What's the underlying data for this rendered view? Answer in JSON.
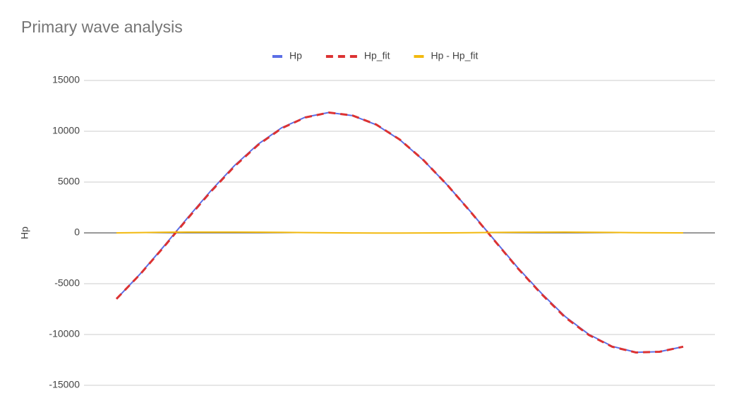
{
  "chart_data": {
    "type": "line",
    "title": "Primary wave analysis",
    "y_label": "Hp",
    "categories": [
      null,
      null,
      null,
      null,
      null,
      null,
      null,
      null,
      null,
      null,
      null,
      null,
      null,
      null,
      null,
      null,
      null,
      null,
      null,
      null,
      null,
      null,
      null,
      null,
      null
    ],
    "series": [
      {
        "name": "Hp",
        "color": "#5b6ee6",
        "dash": false,
        "values": [
          -6500,
          -4050,
          -1340,
          1450,
          4150,
          6630,
          8730,
          10350,
          11390,
          11850,
          11540,
          10640,
          9160,
          7150,
          4740,
          2080,
          -690,
          -3440,
          -5950,
          -8230,
          -9980,
          -11170,
          -11750,
          -11690,
          -11200
        ]
      },
      {
        "name": "Hp_fit",
        "color": "#dc3232",
        "dash": true,
        "values": [
          -6500,
          -4080,
          -1400,
          1370,
          4070,
          6550,
          8660,
          10300,
          11360,
          11840,
          11550,
          10660,
          9180,
          7160,
          4740,
          2060,
          -730,
          -3500,
          -6020,
          -8310,
          -10040,
          -11210,
          -11770,
          -11700,
          -11200
        ]
      },
      {
        "name": "Hp - Hp_fit",
        "color": "#f2b90f",
        "dash": false,
        "values": [
          0,
          30,
          60,
          80,
          80,
          80,
          70,
          50,
          30,
          10,
          -10,
          -20,
          -20,
          -10,
          0,
          20,
          40,
          60,
          70,
          80,
          60,
          40,
          20,
          10,
          0
        ]
      }
    ],
    "ylim": [
      -15000,
      15000
    ],
    "yticks": [
      -15000,
      -10000,
      -5000,
      0,
      5000,
      10000,
      15000
    ],
    "grid": true,
    "legend": "top"
  }
}
